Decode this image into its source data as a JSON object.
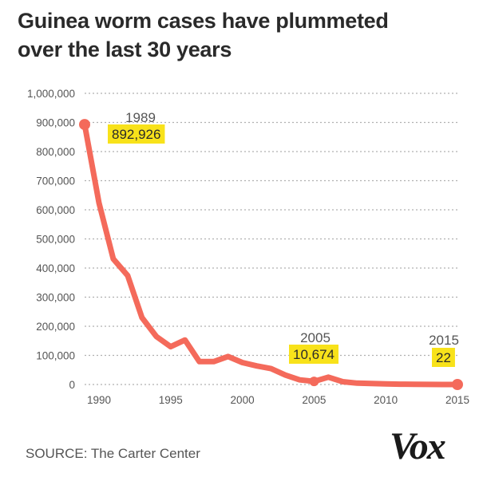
{
  "title": {
    "line1": "Guinea worm cases have plummeted",
    "line2": "over the last 30 years"
  },
  "source": "SOURCE: The Carter Center",
  "logo": "Vox",
  "colors": {
    "line": "#f46a5b",
    "highlight": "#f8e21a",
    "axis_text": "#555555",
    "grid": "#b0b0b0"
  },
  "chart_data": {
    "type": "line",
    "title": "Guinea worm cases have plummeted over the last 30 years",
    "xlabel": "",
    "ylabel": "",
    "xlim": [
      1989,
      2015
    ],
    "ylim": [
      0,
      1000000
    ],
    "grid": true,
    "x_ticks": [
      1990,
      1995,
      2000,
      2005,
      2010,
      2015
    ],
    "y_ticks": [
      0,
      100000,
      200000,
      300000,
      400000,
      500000,
      600000,
      700000,
      800000,
      900000,
      1000000
    ],
    "y_tick_labels": [
      "0",
      "100,000",
      "200,000",
      "300,000",
      "400,000",
      "500,000",
      "600,000",
      "700,000",
      "800,000",
      "900,000",
      "1,000,000"
    ],
    "series": [
      {
        "name": "Guinea worm cases",
        "x": [
          1989,
          1990,
          1991,
          1992,
          1993,
          1994,
          1995,
          1996,
          1997,
          1998,
          1999,
          2000,
          2001,
          2002,
          2003,
          2004,
          2005,
          2006,
          2007,
          2008,
          2009,
          2010,
          2011,
          2012,
          2013,
          2014,
          2015
        ],
        "values": [
          892926,
          623579,
          431152,
          374202,
          229773,
          164977,
          129852,
          152814,
          78557,
          78624,
          96295,
          75223,
          63717,
          54638,
          32193,
          16026,
          10674,
          25217,
          9585,
          4619,
          3190,
          1797,
          1058,
          542,
          148,
          126,
          22
        ]
      }
    ],
    "annotations": [
      {
        "year": "1989",
        "value": "892,926"
      },
      {
        "year": "2005",
        "value": "10,674"
      },
      {
        "year": "2015",
        "value": "22"
      }
    ]
  }
}
